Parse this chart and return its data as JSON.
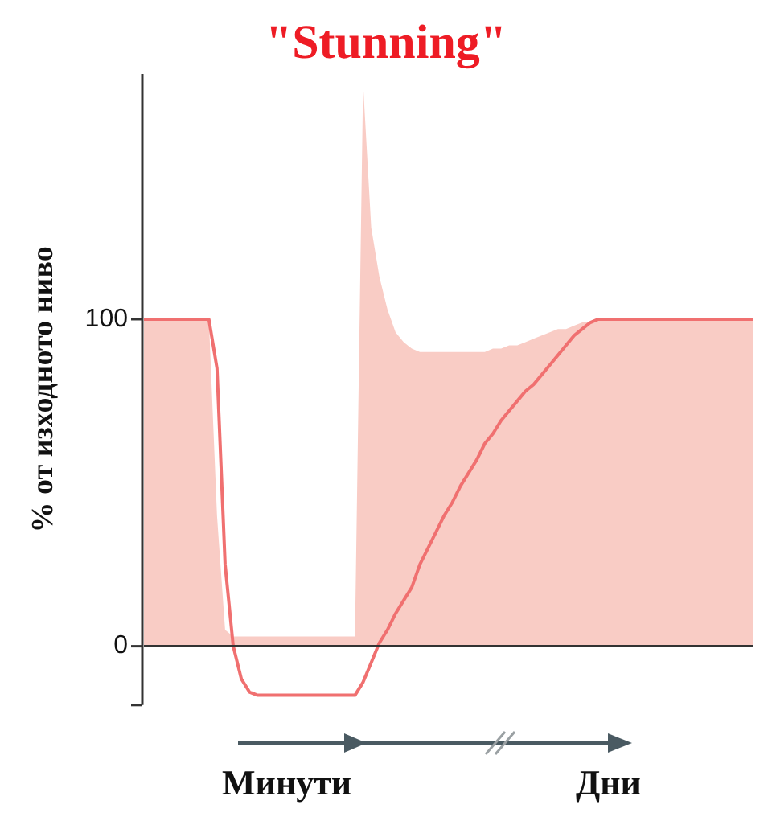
{
  "chart_data": {
    "type": "area",
    "title": "\"Stunning\"",
    "ylabel": "% от изходното ниво",
    "categories": [
      null,
      null,
      null,
      null,
      null,
      null,
      null,
      null,
      null,
      null,
      null,
      null,
      null,
      null,
      null,
      null,
      null,
      null,
      null,
      null,
      null,
      null,
      null,
      null,
      null,
      null,
      null,
      null,
      null,
      null,
      null,
      null,
      null,
      null,
      null,
      null,
      null,
      null,
      null,
      null,
      null,
      null,
      null,
      null,
      null,
      null,
      null,
      null,
      null,
      null,
      null,
      null,
      null,
      null,
      null,
      null,
      null,
      null,
      null,
      null,
      null,
      null,
      null,
      null,
      null,
      null,
      null,
      null,
      null,
      null,
      null,
      null,
      null,
      null,
      null,
      null
    ],
    "series": [
      {
        "color": "#f9ccc5",
        "values": [
          100,
          100,
          100,
          100,
          100,
          100,
          100,
          100,
          100,
          40,
          5,
          3,
          3,
          3,
          3,
          3,
          3,
          3,
          3,
          3,
          3,
          3,
          3,
          3,
          3,
          3,
          3,
          172,
          128,
          113,
          103,
          96,
          93,
          91,
          90,
          90,
          90,
          90,
          90,
          90,
          90,
          90,
          90,
          91,
          91,
          92,
          92,
          93,
          94,
          95,
          96,
          97,
          97,
          98,
          99,
          99,
          100,
          100,
          100,
          100,
          100,
          100,
          100,
          100,
          100,
          100,
          100,
          100,
          100,
          100,
          100,
          100,
          100,
          100,
          100,
          100
        ]
      },
      {
        "type": "line",
        "color": "#f07070",
        "values": [
          100,
          100,
          100,
          100,
          100,
          100,
          100,
          100,
          100,
          85,
          25,
          0,
          -10,
          -14,
          -15,
          -15,
          -15,
          -15,
          -15,
          -15,
          -15,
          -15,
          -15,
          -15,
          -15,
          -15,
          -15,
          -11,
          -5,
          1,
          5,
          10,
          14,
          18,
          25,
          30,
          35,
          40,
          44,
          49,
          53,
          57,
          62,
          65,
          69,
          72,
          75,
          78,
          80,
          83,
          86,
          89,
          92,
          95,
          97,
          99,
          100,
          100,
          100,
          100,
          100,
          100,
          100,
          100,
          100,
          100,
          100,
          100,
          100,
          100,
          100,
          100,
          100,
          100,
          100,
          100
        ]
      }
    ],
    "ylim": [
      -18,
      175
    ],
    "yticks": [
      0,
      100
    ],
    "tick_labels": "y",
    "grid": false,
    "legend": false,
    "marker": "none",
    "line_style": "solid",
    "ref_lines": [
      {
        "axis": "y",
        "value": 0,
        "color": "#333333"
      }
    ],
    "annotations": [
      "Минути",
      "Дни"
    ]
  }
}
